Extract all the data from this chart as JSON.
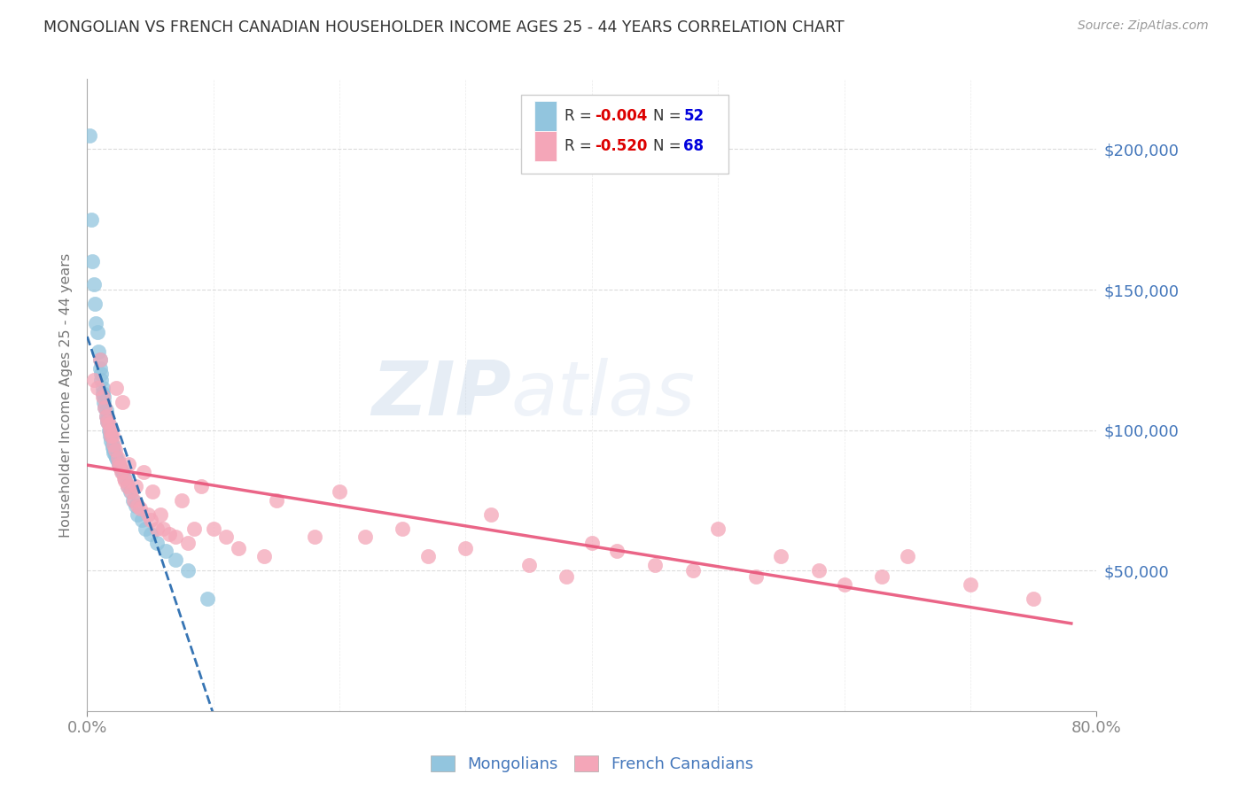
{
  "title": "MONGOLIAN VS FRENCH CANADIAN HOUSEHOLDER INCOME AGES 25 - 44 YEARS CORRELATION CHART",
  "source": "Source: ZipAtlas.com",
  "ylabel": "Householder Income Ages 25 - 44 years",
  "mongolian_R": -0.004,
  "mongolian_N": 52,
  "french_R": -0.52,
  "french_N": 68,
  "xlim": [
    0.0,
    0.8
  ],
  "ylim": [
    0,
    225000
  ],
  "yticks": [
    50000,
    100000,
    150000,
    200000
  ],
  "ytick_labels": [
    "$50,000",
    "$100,000",
    "$150,000",
    "$200,000"
  ],
  "xtick_left_label": "0.0%",
  "xtick_right_label": "80.0%",
  "watermark": "ZIPAtlas",
  "mongolian_color": "#92c5de",
  "mongolian_edge_color": "#92c5de",
  "mongolian_line_color": "#2166ac",
  "french_color": "#f4a6b8",
  "french_edge_color": "#f4a6b8",
  "french_line_color": "#e8547a",
  "background_color": "#ffffff",
  "grid_color": "#cccccc",
  "axis_label_color": "#4477bb",
  "right_tick_color": "#4477bb",
  "title_color": "#333333",
  "source_color": "#999999",
  "legend_r_color": "#dd0000",
  "legend_n_color": "#0000dd",
  "watermark_color": "#b8cce4",
  "mongolian_x": [
    0.002,
    0.003,
    0.004,
    0.005,
    0.006,
    0.007,
    0.008,
    0.009,
    0.01,
    0.01,
    0.011,
    0.011,
    0.012,
    0.012,
    0.013,
    0.013,
    0.014,
    0.015,
    0.015,
    0.016,
    0.016,
    0.017,
    0.017,
    0.018,
    0.018,
    0.019,
    0.019,
    0.02,
    0.02,
    0.021,
    0.021,
    0.022,
    0.023,
    0.024,
    0.025,
    0.026,
    0.027,
    0.028,
    0.03,
    0.032,
    0.034,
    0.036,
    0.038,
    0.04,
    0.043,
    0.046,
    0.05,
    0.055,
    0.062,
    0.07,
    0.08,
    0.095
  ],
  "mongolian_y": [
    205000,
    175000,
    160000,
    152000,
    145000,
    138000,
    135000,
    128000,
    125000,
    122000,
    120000,
    118000,
    115000,
    113000,
    112000,
    110000,
    108000,
    107000,
    105000,
    104000,
    103000,
    102000,
    100000,
    100000,
    98000,
    98000,
    96000,
    95000,
    94000,
    93000,
    92000,
    91000,
    90000,
    89000,
    88000,
    87000,
    86000,
    85000,
    83000,
    80000,
    78000,
    75000,
    73000,
    70000,
    68000,
    65000,
    63000,
    60000,
    57000,
    54000,
    50000,
    40000
  ],
  "french_x": [
    0.005,
    0.008,
    0.01,
    0.012,
    0.014,
    0.015,
    0.016,
    0.017,
    0.018,
    0.019,
    0.02,
    0.021,
    0.022,
    0.023,
    0.024,
    0.025,
    0.026,
    0.027,
    0.028,
    0.029,
    0.03,
    0.032,
    0.033,
    0.035,
    0.037,
    0.038,
    0.04,
    0.042,
    0.045,
    0.048,
    0.05,
    0.052,
    0.055,
    0.058,
    0.06,
    0.065,
    0.07,
    0.075,
    0.08,
    0.085,
    0.09,
    0.1,
    0.11,
    0.12,
    0.14,
    0.15,
    0.18,
    0.2,
    0.22,
    0.25,
    0.27,
    0.3,
    0.32,
    0.35,
    0.38,
    0.4,
    0.42,
    0.45,
    0.48,
    0.5,
    0.53,
    0.55,
    0.58,
    0.6,
    0.63,
    0.65,
    0.7,
    0.75
  ],
  "french_y": [
    118000,
    115000,
    125000,
    112000,
    108000,
    105000,
    103000,
    102000,
    100000,
    98000,
    98000,
    95000,
    93000,
    115000,
    90000,
    88000,
    87000,
    85000,
    110000,
    83000,
    82000,
    80000,
    88000,
    78000,
    75000,
    80000,
    73000,
    72000,
    85000,
    70000,
    68000,
    78000,
    65000,
    70000,
    65000,
    63000,
    62000,
    75000,
    60000,
    65000,
    80000,
    65000,
    62000,
    58000,
    55000,
    75000,
    62000,
    78000,
    62000,
    65000,
    55000,
    58000,
    70000,
    52000,
    48000,
    60000,
    57000,
    52000,
    50000,
    65000,
    48000,
    55000,
    50000,
    45000,
    48000,
    55000,
    45000,
    40000
  ]
}
